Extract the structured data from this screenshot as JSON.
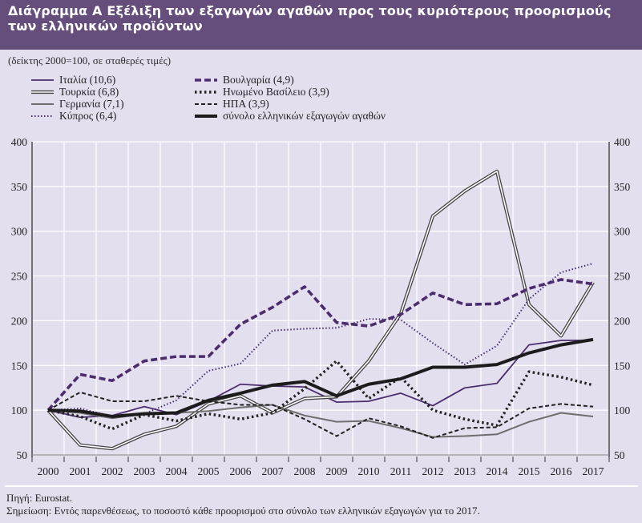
{
  "header": {
    "title": "Διάγραμμα Α  Εξέλιξη των εξαγωγών αγαθών προς τους κυριότερους προορισμούς των ελληνικών προϊόντων"
  },
  "subtitle": "(δείκτης 2000=100, σε σταθερές τιμές)",
  "footer": {
    "source": "Πηγή: Eurostat.",
    "note": "Σημείωση: Εντός παρενθέσεως, το ποσοστό κάθε προορισμού στο σύνολο των ελληνικών εξαγωγών για το 2017."
  },
  "colors": {
    "header_bg": "#654e7c",
    "background": "#e3dfee",
    "purple": "#4b2d6e",
    "dark": "#1c1c1c",
    "gray": "#6e6e6e",
    "grid": "#ffffff"
  },
  "chart_data": {
    "type": "line",
    "title": "Εξέλιξη των εξαγωγών αγαθών προς τους κυριότερους προορισμούς των ελληνικών προϊόντων",
    "subtitle": "(δείκτης 2000=100, σε σταθερές τιμές)",
    "xlabel": "",
    "ylabel": "",
    "ylim": [
      50,
      400
    ],
    "yticks": [
      50,
      100,
      150,
      200,
      250,
      300,
      350,
      400
    ],
    "ytick_labels": [
      "50",
      "100",
      "150",
      "200",
      "250",
      "300",
      "350",
      "400"
    ],
    "categories": [
      "2000",
      "2001",
      "2002",
      "2003",
      "2004",
      "2005",
      "2006",
      "2007",
      "2008",
      "2009",
      "2010",
      "2011",
      "2012",
      "2013",
      "2014",
      "2015",
      "2016",
      "2017"
    ],
    "grid": true,
    "legend_position": "top",
    "series": [
      {
        "key": "italy",
        "name": "Ιταλία (10,6)",
        "style": "solid-purple",
        "values": [
          100,
          92,
          94,
          104,
          95,
          110,
          129,
          127,
          126,
          109,
          110,
          119,
          105,
          125,
          130,
          173,
          178,
          178
        ]
      },
      {
        "key": "turkey",
        "name": "Τουρκία (6,8)",
        "style": "double",
        "values": [
          100,
          61,
          57,
          73,
          82,
          107,
          116,
          97,
          113,
          115,
          155,
          208,
          317,
          345,
          367,
          218,
          183,
          243
        ]
      },
      {
        "key": "germany",
        "name": "Γερμανία (7,1)",
        "style": "solid-gray",
        "values": [
          100,
          97,
          91,
          96,
          97,
          99,
          103,
          106,
          94,
          87,
          88,
          80,
          70,
          71,
          73,
          87,
          97,
          93
        ]
      },
      {
        "key": "cyprus",
        "name": "Κύπρος (6,4)",
        "style": "dotted-purple",
        "values": [
          100,
          102,
          93,
          96,
          111,
          144,
          152,
          189,
          191,
          192,
          202,
          201,
          175,
          151,
          172,
          224,
          254,
          264
        ]
      },
      {
        "key": "bulgaria",
        "name": "Βουλγαρία (4,9)",
        "style": "dashed-purple",
        "values": [
          100,
          140,
          133,
          155,
          160,
          160,
          196,
          215,
          238,
          198,
          194,
          207,
          231,
          218,
          219,
          236,
          246,
          241
        ]
      },
      {
        "key": "uk",
        "name": "Ηνωμένο Βασίλειο (3,9)",
        "style": "dotted-black",
        "values": [
          100,
          93,
          79,
          95,
          88,
          96,
          90,
          97,
          124,
          155,
          113,
          137,
          100,
          90,
          83,
          143,
          137,
          128
        ]
      },
      {
        "key": "usa",
        "name": "ΗΠΑ (3,9)",
        "style": "dashed-black",
        "values": [
          100,
          120,
          110,
          110,
          116,
          110,
          106,
          106,
          90,
          71,
          91,
          82,
          69,
          80,
          81,
          102,
          107,
          104
        ]
      },
      {
        "key": "total",
        "name": "σύνολο ελληνικών εξαγωγών αγαθών",
        "style": "thick-black",
        "values": [
          100,
          99,
          93,
          96,
          97,
          111,
          119,
          128,
          132,
          116,
          129,
          135,
          148,
          148,
          151,
          164,
          173,
          179
        ]
      }
    ]
  }
}
